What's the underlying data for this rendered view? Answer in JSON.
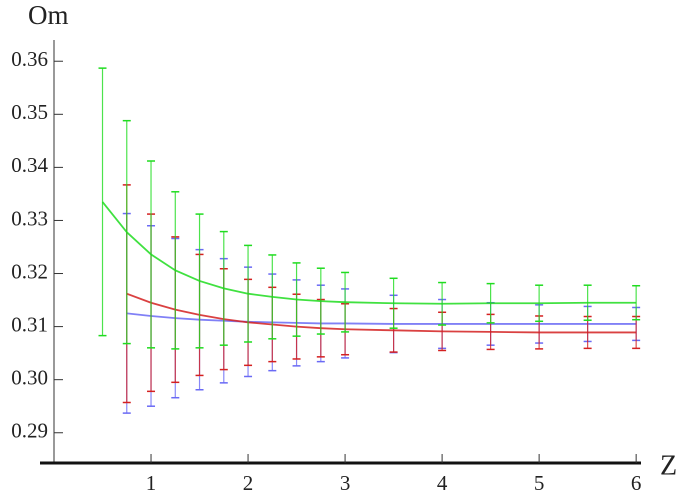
{
  "chart_data": {
    "type": "errorbar",
    "y_label": "Om",
    "x_label": "Z",
    "xlim": [
      0,
      6.05
    ],
    "ylim": [
      0.2843,
      0.364
    ],
    "xticks": [
      1,
      2,
      3,
      4,
      5,
      6
    ],
    "yticks": [
      0.29,
      {
        "value": 0.3,
        "label": "0.30"
      },
      0.31,
      0.32,
      0.33,
      0.34,
      0.35,
      0.36
    ],
    "x": [
      0.5,
      0.75,
      1,
      1.25,
      1.5,
      1.75,
      2,
      2.25,
      2.5,
      2.75,
      3,
      3.5,
      4,
      4.5,
      5,
      5.5,
      6
    ],
    "series": [
      {
        "color": "#6a6af5",
        "values": [
          null,
          0.3125,
          0.312,
          0.3116,
          0.3113,
          0.3111,
          0.3109,
          0.3108,
          0.3107,
          0.3106,
          0.3106,
          0.3105,
          0.3105,
          0.3105,
          0.3105,
          0.3105,
          0.3105
        ],
        "errors": [
          null,
          0.0188,
          0.017,
          0.015,
          0.0132,
          0.0117,
          0.0103,
          0.0091,
          0.0081,
          0.0072,
          0.0065,
          0.0054,
          0.0046,
          0.004,
          0.0036,
          0.0033,
          0.0031
        ]
      },
      {
        "color": "#d42020",
        "values": [
          null,
          0.3162,
          0.3145,
          0.3132,
          0.3122,
          0.3114,
          0.3108,
          0.3104,
          0.31,
          0.3097,
          0.3095,
          0.3093,
          0.3091,
          0.309,
          0.3089,
          0.3089,
          0.3089
        ],
        "errors": [
          null,
          0.0205,
          0.0167,
          0.0137,
          0.0114,
          0.0095,
          0.0081,
          0.007,
          0.0061,
          0.0054,
          0.0048,
          0.0041,
          0.0036,
          0.0033,
          0.0031,
          0.003,
          0.003
        ]
      },
      {
        "color": "#1fdc1f",
        "values": [
          0.3335,
          0.3278,
          0.3236,
          0.3206,
          0.3186,
          0.3172,
          0.3162,
          0.3156,
          0.3151,
          0.3148,
          0.3146,
          0.3144,
          0.3143,
          0.3144,
          0.3144,
          0.3145,
          0.3145
        ],
        "errors": [
          0.0252,
          0.021,
          0.0176,
          0.0148,
          0.0126,
          0.0107,
          0.0091,
          0.0079,
          0.0069,
          0.0062,
          0.0056,
          0.0047,
          0.004,
          0.0037,
          0.0034,
          0.0033,
          0.0032
        ]
      }
    ]
  }
}
